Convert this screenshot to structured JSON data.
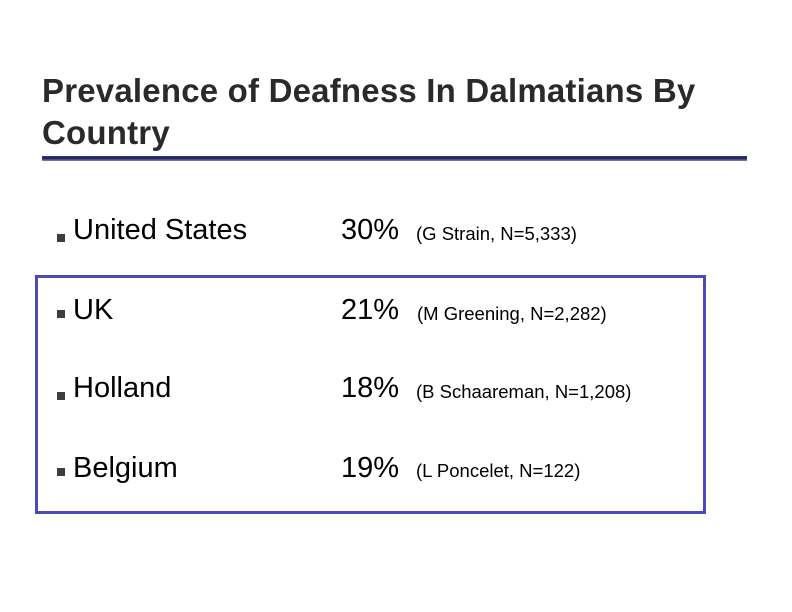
{
  "slide": {
    "title": "Prevalence of Deafness In Dalmatians By Country",
    "accent_color": "#4a4ab8",
    "rows": [
      {
        "country": "United States",
        "percent": "30%",
        "source": "(G Strain, N=5,333)"
      },
      {
        "country": "UK",
        "percent": "21%",
        "source": "(M Greening, N=2,282)"
      },
      {
        "country": "Holland",
        "percent": "18%",
        "source": "(B Schaareman, N=1,208)"
      },
      {
        "country": "Belgium",
        "percent": "19%",
        "source": "(L Poncelet, N=122)"
      }
    ]
  }
}
